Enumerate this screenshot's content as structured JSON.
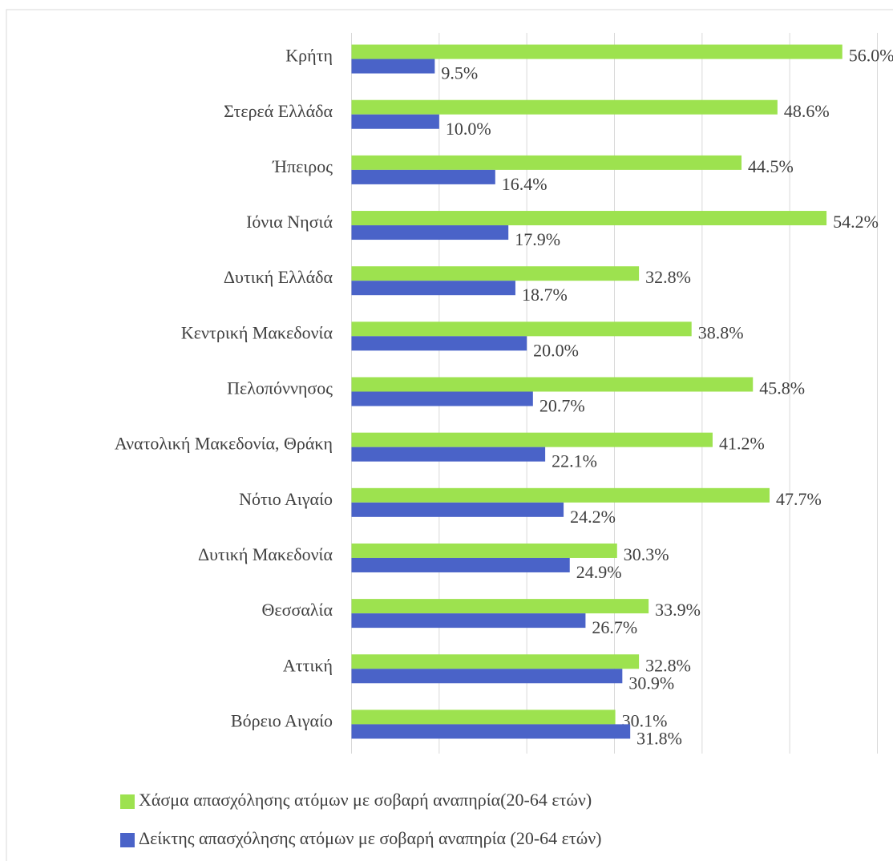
{
  "chart_data": {
    "type": "hbar",
    "categories": [
      "Κρήτη",
      "Στερεά Ελλάδα",
      "Ήπειρος",
      "Ιόνια Νησιά",
      "Δυτική Ελλάδα",
      "Κεντρική Μακεδονία",
      "Πελοπόννησος",
      "Ανατολική Μακεδονία, Θράκη",
      "Νότιο Αιγαίο",
      "Δυτική Μακεδονία",
      "Θεσσαλία",
      "Αττική",
      "Βόρειο Αιγαίο"
    ],
    "series": [
      {
        "name": "Χάσμα απασχόλησης ατόμων με σοβαρή αναπηρία(20-64 ετών)",
        "color": "#9de24f",
        "values": [
          56.0,
          48.6,
          44.5,
          54.2,
          32.8,
          38.8,
          45.8,
          41.2,
          47.7,
          30.3,
          33.9,
          32.8,
          30.1
        ],
        "value_labels": [
          "56.0%",
          "48.6%",
          "44.5%",
          "54.2%",
          "32.8%",
          "38.8%",
          "45.8%",
          "41.2%",
          "47.7%",
          "30.3%",
          "33.9%",
          "32.8%",
          "30.1%"
        ]
      },
      {
        "name": "Δείκτης απασχόλησης ατόμων με σοβαρή αναπηρία (20-64 ετών)",
        "color": "#4a63c8",
        "values": [
          9.5,
          10.0,
          16.4,
          17.9,
          18.7,
          20.0,
          20.7,
          22.1,
          24.2,
          24.9,
          26.7,
          30.9,
          31.8
        ],
        "value_labels": [
          "9.5%",
          "10.0%",
          "16.4%",
          "17.9%",
          "18.7%",
          "20.0%",
          "20.7%",
          "22.1%",
          "24.2%",
          "24.9%",
          "26.7%",
          "30.9%",
          "31.8%"
        ]
      }
    ],
    "xlim": [
      0,
      60
    ],
    "xticks": [
      0,
      10,
      20,
      30,
      40,
      50,
      60
    ],
    "grid": true,
    "legend": "bottom"
  }
}
